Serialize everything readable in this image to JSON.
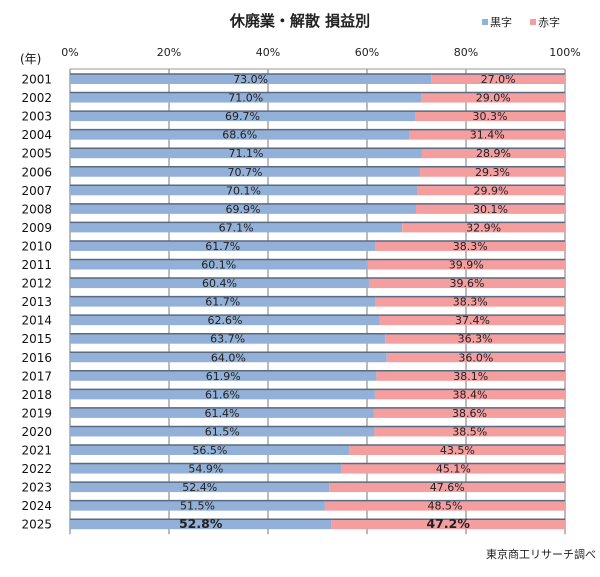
{
  "chart_data": {
    "type": "bar",
    "orientation": "horizontal",
    "stacked": "percent",
    "title": "休廃業・解散  損益別",
    "ylabel": "(年)",
    "xlim": [
      0,
      100
    ],
    "x_ticks": [
      "0%",
      "20%",
      "40%",
      "60%",
      "80%",
      "100%"
    ],
    "grid": true,
    "legend_position": "top-right",
    "source": "東京商工リサーチ調べ",
    "categories": [
      "2001",
      "2002",
      "2003",
      "2004",
      "2005",
      "2006",
      "2007",
      "2008",
      "2009",
      "2010",
      "2011",
      "2012",
      "2013",
      "2014",
      "2015",
      "2016",
      "2017",
      "2018",
      "2019",
      "2020",
      "2021",
      "2022",
      "2023",
      "2024",
      "2025"
    ],
    "series": [
      {
        "name": "黒字",
        "color": "#93b1d8",
        "values": [
          73.0,
          71.0,
          69.7,
          68.6,
          71.1,
          70.7,
          70.1,
          69.9,
          67.1,
          61.7,
          60.1,
          60.4,
          61.7,
          62.6,
          63.7,
          64.0,
          61.9,
          61.6,
          61.4,
          61.5,
          56.5,
          54.9,
          52.4,
          51.5,
          52.8
        ]
      },
      {
        "name": "赤字",
        "color": "#f59ea0",
        "values": [
          27.0,
          29.0,
          30.3,
          31.4,
          28.9,
          29.3,
          29.9,
          30.1,
          32.9,
          38.3,
          39.9,
          39.6,
          38.3,
          37.4,
          36.3,
          36.0,
          38.1,
          38.4,
          38.6,
          38.5,
          43.5,
          45.1,
          47.6,
          48.5,
          47.2
        ]
      }
    ]
  }
}
